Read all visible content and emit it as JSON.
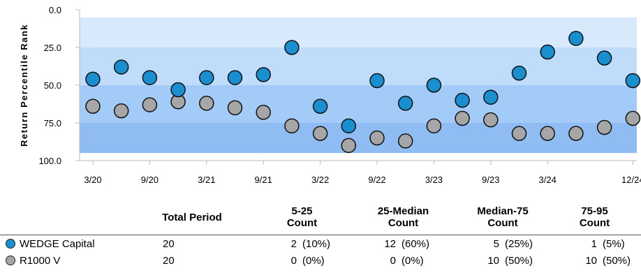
{
  "chart_data": {
    "type": "scatter",
    "ylabel": "Return Percentile Rank",
    "ylim": [
      0,
      100
    ],
    "y_inverted": true,
    "y_ticks": [
      "0.0",
      "25.0",
      "50.0",
      "75.0",
      "100.0"
    ],
    "bands": [
      {
        "from": 5,
        "to": 25,
        "color": "#d8e9fb"
      },
      {
        "from": 25,
        "to": 50,
        "color": "#bfdcfb"
      },
      {
        "from": 50,
        "to": 75,
        "color": "#a3cbf7"
      },
      {
        "from": 75,
        "to": 95,
        "color": "#8fbcf3"
      }
    ],
    "x_labels": [
      "3/20",
      "9/20",
      "3/21",
      "9/21",
      "3/22",
      "9/22",
      "3/23",
      "9/23",
      "3/24",
      "12/24"
    ],
    "x_label_positions": [
      0,
      2,
      4,
      6,
      8,
      10,
      12,
      14,
      16,
      19
    ],
    "grid": false,
    "series": [
      {
        "name": "WEDGE Capital",
        "color": "#1a8fd0",
        "values": [
          46,
          38,
          45,
          53,
          45,
          45,
          43,
          25,
          64,
          77,
          47,
          62,
          50,
          60,
          58,
          42,
          28,
          19,
          32,
          47
        ]
      },
      {
        "name": "R1000 V",
        "color": "#a6a6a6",
        "values": [
          64,
          67,
          63,
          61,
          62,
          65,
          68,
          77,
          82,
          90,
          85,
          87,
          77,
          72,
          73,
          82,
          82,
          82,
          78,
          72
        ]
      }
    ]
  },
  "table": {
    "headers": {
      "total": "Total Period",
      "b1": [
        "5-25",
        "Count"
      ],
      "b2": [
        "25-Median",
        "Count"
      ],
      "b3": [
        "Median-75",
        "Count"
      ],
      "b4": [
        "75-95",
        "Count"
      ]
    },
    "rows": [
      {
        "name": "WEDGE Capital",
        "color": "#1a8fd0",
        "total": "20",
        "b1": {
          "count": "2",
          "pct": "(10%)"
        },
        "b2": {
          "count": "12",
          "pct": "(60%)"
        },
        "b3": {
          "count": "5",
          "pct": "(25%)"
        },
        "b4": {
          "count": "1",
          "pct": "(5%)"
        }
      },
      {
        "name": "R1000 V",
        "color": "#a6a6a6",
        "total": "20",
        "b1": {
          "count": "0",
          "pct": "(0%)"
        },
        "b2": {
          "count": "0",
          "pct": "(0%)"
        },
        "b3": {
          "count": "10",
          "pct": "(50%)"
        },
        "b4": {
          "count": "10",
          "pct": "(50%)"
        }
      }
    ]
  }
}
